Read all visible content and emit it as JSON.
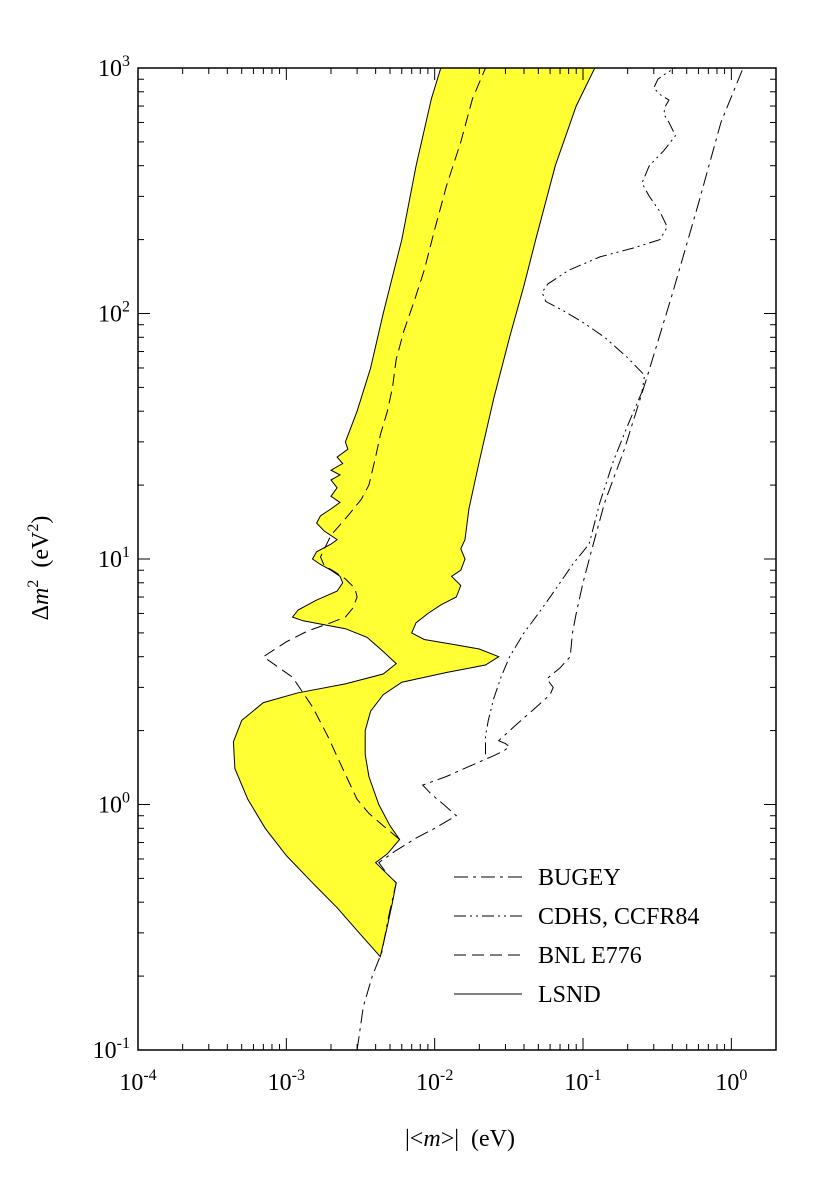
{
  "chart_data": {
    "type": "line",
    "x_scale": "log",
    "y_scale": "log",
    "xlim": [
      0.0001,
      2
    ],
    "ylim": [
      0.1,
      1000
    ],
    "xlabel": {
      "pre": "|<",
      "var": "m",
      "post": ">|  (eV)"
    },
    "ylabel": {
      "pre": "Δ",
      "var": "m",
      "sup": "2",
      "post": "  (eV",
      "post_sup": "2",
      "close": ")"
    },
    "x_ticks": [
      {
        "value": 0.0001,
        "base": "10",
        "exp": "-4"
      },
      {
        "value": 0.001,
        "base": "10",
        "exp": "-3"
      },
      {
        "value": 0.01,
        "base": "10",
        "exp": "-2"
      },
      {
        "value": 0.1,
        "base": "10",
        "exp": "-1"
      },
      {
        "value": 1,
        "base": "10",
        "exp": "0"
      }
    ],
    "y_ticks": [
      {
        "value": 0.1,
        "base": "10",
        "exp": "-1"
      },
      {
        "value": 1,
        "base": "10",
        "exp": "0"
      },
      {
        "value": 10,
        "base": "10",
        "exp": "1"
      },
      {
        "value": 100,
        "base": "10",
        "exp": "2"
      },
      {
        "value": 1000,
        "base": "10",
        "exp": "3"
      }
    ],
    "legend_position": "bottom-right",
    "grid": false,
    "colors": {
      "lsnd_fill": "#ffff33",
      "line": "#000000"
    },
    "series": [
      {
        "name": "BUGEY",
        "style": "dash-dot",
        "points": [
          [
            0.003,
            0.1
          ],
          [
            0.0033,
            0.15
          ],
          [
            0.0038,
            0.2
          ],
          [
            0.0044,
            0.25
          ],
          [
            0.0049,
            0.35
          ],
          [
            0.0055,
            0.48
          ],
          [
            0.0048,
            0.52
          ],
          [
            0.0042,
            0.58
          ],
          [
            0.0055,
            0.65
          ],
          [
            0.0075,
            0.73
          ],
          [
            0.01,
            0.8
          ],
          [
            0.014,
            0.9
          ],
          [
            0.0115,
            1.0
          ],
          [
            0.0095,
            1.1
          ],
          [
            0.0083,
            1.2
          ],
          [
            0.012,
            1.3
          ],
          [
            0.018,
            1.45
          ],
          [
            0.025,
            1.58
          ],
          [
            0.029,
            1.65
          ],
          [
            0.032,
            1.72
          ],
          [
            0.03,
            1.77
          ],
          [
            0.027,
            1.82
          ],
          [
            0.035,
            2.1
          ],
          [
            0.045,
            2.4
          ],
          [
            0.06,
            2.8
          ],
          [
            0.063,
            3.0
          ],
          [
            0.057,
            3.25
          ],
          [
            0.07,
            3.6
          ],
          [
            0.082,
            4.0
          ],
          [
            0.085,
            5.0
          ],
          [
            0.09,
            6.0
          ],
          [
            0.1,
            8.0
          ],
          [
            0.115,
            11.0
          ],
          [
            0.14,
            17.0
          ],
          [
            0.19,
            28.0
          ],
          [
            0.27,
            55.0
          ],
          [
            0.4,
            120.0
          ],
          [
            0.6,
            280.0
          ],
          [
            0.85,
            600.0
          ],
          [
            1.2,
            1000.0
          ]
        ]
      },
      {
        "name": "CDHS, CCFR84",
        "style": "dash-dot-dot",
        "points": [
          [
            0.022,
            1.6
          ],
          [
            0.022,
            1.9
          ],
          [
            0.023,
            2.2
          ],
          [
            0.025,
            2.7
          ],
          [
            0.028,
            3.3
          ],
          [
            0.032,
            4.0
          ],
          [
            0.04,
            5.0
          ],
          [
            0.05,
            6.0
          ],
          [
            0.065,
            7.5
          ],
          [
            0.085,
            9.5
          ],
          [
            0.11,
            11.5
          ],
          [
            0.13,
            17.0
          ],
          [
            0.16,
            25.0
          ],
          [
            0.2,
            35.0
          ],
          [
            0.25,
            48.0
          ],
          [
            0.26,
            56.0
          ],
          [
            0.2,
            66.0
          ],
          [
            0.14,
            80.0
          ],
          [
            0.1,
            92.0
          ],
          [
            0.075,
            102.0
          ],
          [
            0.056,
            112.0
          ],
          [
            0.053,
            122.0
          ],
          [
            0.058,
            132.0
          ],
          [
            0.08,
            150.0
          ],
          [
            0.13,
            170.0
          ],
          [
            0.22,
            185.0
          ],
          [
            0.33,
            200.0
          ],
          [
            0.37,
            225.0
          ],
          [
            0.33,
            260.0
          ],
          [
            0.28,
            300.0
          ],
          [
            0.25,
            340.0
          ],
          [
            0.28,
            400.0
          ],
          [
            0.35,
            460.0
          ],
          [
            0.42,
            530.0
          ],
          [
            0.38,
            600.0
          ],
          [
            0.35,
            650.0
          ],
          [
            0.36,
            700.0
          ],
          [
            0.38,
            740.0
          ],
          [
            0.33,
            780.0
          ],
          [
            0.3,
            830.0
          ],
          [
            0.32,
            900.0
          ],
          [
            0.37,
            960.0
          ],
          [
            0.42,
            1000.0
          ],
          [
            0.8,
            1000.0
          ]
        ]
      },
      {
        "name": "BNL E776",
        "style": "dashed",
        "points": [
          [
            0.0058,
            0.72
          ],
          [
            0.0045,
            0.82
          ],
          [
            0.0036,
            0.92
          ],
          [
            0.003,
            1.05
          ],
          [
            0.0024,
            1.4
          ],
          [
            0.0019,
            1.9
          ],
          [
            0.0015,
            2.5
          ],
          [
            0.0011,
            3.3
          ],
          [
            0.0007,
            4.0
          ],
          [
            0.001,
            4.6
          ],
          [
            0.0014,
            5.1
          ],
          [
            0.002,
            5.5
          ],
          [
            0.0025,
            5.8
          ],
          [
            0.0028,
            6.3
          ],
          [
            0.003,
            7.0
          ],
          [
            0.0029,
            7.6
          ],
          [
            0.0025,
            8.3
          ],
          [
            0.0021,
            8.9
          ],
          [
            0.0018,
            9.4
          ],
          [
            0.0017,
            10.2
          ],
          [
            0.002,
            12.5
          ],
          [
            0.0026,
            15.0
          ],
          [
            0.0032,
            17.5
          ],
          [
            0.0036,
            20.0
          ],
          [
            0.004,
            26.0
          ],
          [
            0.0043,
            32.0
          ],
          [
            0.0048,
            40.0
          ],
          [
            0.0052,
            50.0
          ],
          [
            0.0055,
            65.0
          ],
          [
            0.0062,
            85.0
          ],
          [
            0.0072,
            110.0
          ],
          [
            0.0085,
            150.0
          ],
          [
            0.01,
            220.0
          ],
          [
            0.012,
            330.0
          ],
          [
            0.015,
            500.0
          ],
          [
            0.018,
            750.0
          ],
          [
            0.022,
            1000.0
          ]
        ]
      },
      {
        "name": "LSND",
        "style": "solid",
        "fill": true,
        "points": [
          [
            0.0043,
            0.24
          ],
          [
            0.0031,
            0.3
          ],
          [
            0.0022,
            0.38
          ],
          [
            0.0015,
            0.48
          ],
          [
            0.001,
            0.62
          ],
          [
            0.00072,
            0.8
          ],
          [
            0.00055,
            1.05
          ],
          [
            0.00045,
            1.4
          ],
          [
            0.00044,
            1.8
          ],
          [
            0.0005,
            2.2
          ],
          [
            0.0007,
            2.6
          ],
          [
            0.0012,
            2.85
          ],
          [
            0.0025,
            3.1
          ],
          [
            0.0045,
            3.4
          ],
          [
            0.0055,
            3.75
          ],
          [
            0.0045,
            4.2
          ],
          [
            0.0035,
            4.8
          ],
          [
            0.0025,
            5.2
          ],
          [
            0.0018,
            5.4
          ],
          [
            0.0013,
            5.6
          ],
          [
            0.0011,
            5.8
          ],
          [
            0.0012,
            6.2
          ],
          [
            0.0016,
            6.8
          ],
          [
            0.0022,
            7.4
          ],
          [
            0.0024,
            8.0
          ],
          [
            0.0023,
            8.5
          ],
          [
            0.002,
            9.0
          ],
          [
            0.0017,
            9.5
          ],
          [
            0.0015,
            10.0
          ],
          [
            0.0016,
            10.7
          ],
          [
            0.002,
            11.5
          ],
          [
            0.0022,
            12.0
          ],
          [
            0.0018,
            13.0
          ],
          [
            0.0016,
            14.0
          ],
          [
            0.0017,
            15.0
          ],
          [
            0.002,
            16.0
          ],
          [
            0.0023,
            17.0
          ],
          [
            0.002,
            18.0
          ],
          [
            0.0022,
            19.5
          ],
          [
            0.002,
            21.0
          ],
          [
            0.0023,
            22.0
          ],
          [
            0.002,
            23.0
          ],
          [
            0.0024,
            24.5
          ],
          [
            0.0022,
            26.0
          ],
          [
            0.0026,
            28.0
          ],
          [
            0.0025,
            30.0
          ],
          [
            0.003,
            40.0
          ],
          [
            0.0037,
            60.0
          ],
          [
            0.0045,
            100.0
          ],
          [
            0.006,
            200.0
          ],
          [
            0.0075,
            400.0
          ],
          [
            0.0095,
            750.0
          ],
          [
            0.011,
            1000.0
          ],
          [
            0.12,
            1000.0
          ],
          [
            0.09,
            700.0
          ],
          [
            0.065,
            400.0
          ],
          [
            0.048,
            200.0
          ],
          [
            0.04,
            130.0
          ],
          [
            0.032,
            80.0
          ],
          [
            0.025,
            45.0
          ],
          [
            0.02,
            25.0
          ],
          [
            0.017,
            16.0
          ],
          [
            0.016,
            12.0
          ],
          [
            0.015,
            11.0
          ],
          [
            0.016,
            10.0
          ],
          [
            0.015,
            9.0
          ],
          [
            0.013,
            8.5
          ],
          [
            0.015,
            7.8
          ],
          [
            0.014,
            7.0
          ],
          [
            0.011,
            6.5
          ],
          [
            0.009,
            6.0
          ],
          [
            0.0075,
            5.5
          ],
          [
            0.007,
            5.0
          ],
          [
            0.0085,
            4.7
          ],
          [
            0.013,
            4.5
          ],
          [
            0.02,
            4.3
          ],
          [
            0.027,
            4.0
          ],
          [
            0.022,
            3.7
          ],
          [
            0.012,
            3.45
          ],
          [
            0.006,
            3.15
          ],
          [
            0.0045,
            2.8
          ],
          [
            0.0037,
            2.4
          ],
          [
            0.0034,
            2.0
          ],
          [
            0.0034,
            1.6
          ],
          [
            0.0036,
            1.3
          ],
          [
            0.0042,
            1.0
          ],
          [
            0.005,
            0.82
          ],
          [
            0.0058,
            0.72
          ],
          [
            0.0048,
            0.63
          ],
          [
            0.004,
            0.58
          ],
          [
            0.0048,
            0.52
          ],
          [
            0.0055,
            0.48
          ],
          [
            0.0052,
            0.4
          ],
          [
            0.0048,
            0.32
          ],
          [
            0.0043,
            0.24
          ]
        ]
      }
    ]
  }
}
